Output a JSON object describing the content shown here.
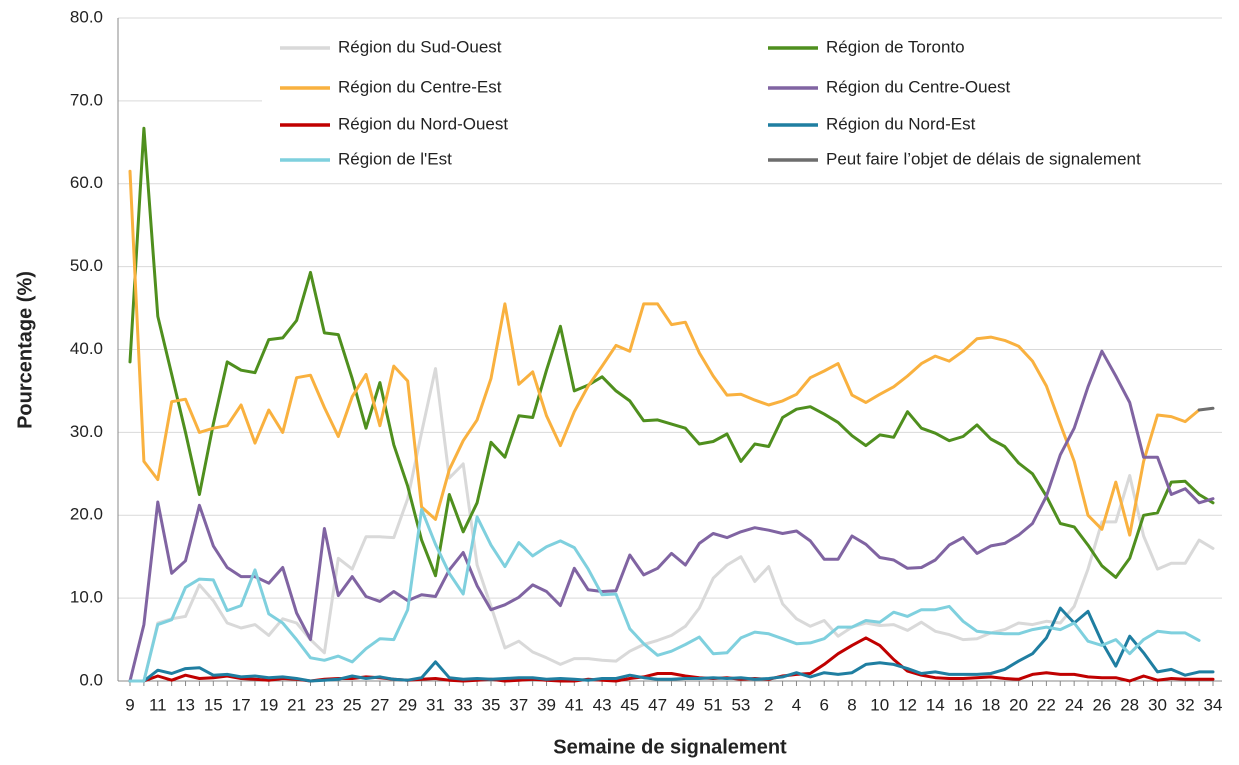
{
  "chart_data": {
    "type": "line",
    "x_label": "Semaine de signalement",
    "y_label": "Pourcentage (%)",
    "categories": [
      "9",
      null,
      "11",
      null,
      "13",
      null,
      "15",
      null,
      "17",
      null,
      "19",
      null,
      "21",
      null,
      "23",
      null,
      "25",
      null,
      "27",
      null,
      "29",
      null,
      "31",
      null,
      "33",
      null,
      "35",
      null,
      "37",
      null,
      "39",
      null,
      "41",
      null,
      "43",
      null,
      "45",
      null,
      "47",
      null,
      "49",
      null,
      "51",
      null,
      "53",
      null,
      "2",
      null,
      "4",
      null,
      "6",
      null,
      "8",
      null,
      "10",
      null,
      "12",
      null,
      "14",
      null,
      "16",
      null,
      "18",
      null,
      "20",
      null,
      "22",
      null,
      "24",
      null,
      "26",
      null,
      "28",
      null,
      "30",
      null,
      "32",
      null,
      "34"
    ],
    "ylim": [
      0,
      80
    ],
    "yticks": [
      {
        "value": 0,
        "label": "0.0"
      },
      {
        "value": 10,
        "label": "10.0"
      },
      {
        "value": 20,
        "label": "20.0"
      },
      {
        "value": 30,
        "label": "30.0"
      },
      {
        "value": 40,
        "label": "40.0"
      },
      {
        "value": 50,
        "label": "50.0"
      },
      {
        "value": 60,
        "label": "60.0"
      },
      {
        "value": 70,
        "label": "70.0"
      },
      {
        "value": 80,
        "label": "80.0"
      }
    ],
    "grid": true,
    "series": [
      {
        "name": "Région du Sud-Ouest",
        "color": "#d9d9d9",
        "values": [
          0,
          0,
          7,
          7.5,
          7.8,
          11.6,
          9.7,
          7,
          6.4,
          6.8,
          5.5,
          7.5,
          7,
          5,
          3.4,
          14.8,
          13.5,
          17.4,
          17.4,
          17.3,
          22,
          30,
          37.7,
          24.5,
          26.2,
          14,
          9,
          4,
          4.8,
          3.5,
          2.8,
          2,
          2.7,
          2.7,
          2.5,
          2.4,
          3.6,
          4.4,
          4.9,
          5.5,
          6.6,
          8.8,
          12.4,
          14,
          15,
          12,
          13.8,
          9.3,
          7.5,
          6.6,
          7.3,
          5.4,
          6.5,
          7,
          6.7,
          6.8,
          6.1,
          7.1,
          6,
          5.6,
          5,
          5.1,
          5.8,
          6.2,
          7,
          6.8,
          7.2,
          7,
          9,
          13.5,
          19.2,
          19.2,
          24.8,
          17.5,
          13.5,
          14.2,
          14.2,
          17,
          16
        ]
      },
      {
        "name": "Région de Toronto",
        "color": "#4f8f1e",
        "values": [
          38.5,
          66.7,
          44,
          37,
          30,
          22.5,
          31,
          38.5,
          37.5,
          37.2,
          41.2,
          41.4,
          43.5,
          49.3,
          42,
          41.8,
          36.5,
          30.5,
          36,
          28.5,
          23.5,
          17,
          12.7,
          22.5,
          18,
          21.5,
          28.8,
          27,
          32,
          31.8,
          37.5,
          42.8,
          35,
          35.7,
          36.7,
          35,
          33.8,
          31.4,
          31.5,
          31,
          30.5,
          28.6,
          28.9,
          29.8,
          26.5,
          28.6,
          28.3,
          31.8,
          32.8,
          33.1,
          32.2,
          31.2,
          29.6,
          28.4,
          29.7,
          29.4,
          32.5,
          30.5,
          29.9,
          29,
          29.5,
          30.9,
          29.2,
          28.3,
          26.3,
          25,
          22.3,
          19,
          18.6,
          16.4,
          13.9,
          12.5,
          14.8,
          20,
          20.3,
          24,
          24.1,
          22.5,
          21.5
        ]
      },
      {
        "name": "Région du Centre-Est",
        "color": "#f9b13f",
        "values": [
          61.5,
          26.5,
          24.3,
          33.7,
          34,
          30,
          30.5,
          30.8,
          33.3,
          28.7,
          32.7,
          30,
          36.6,
          36.9,
          33,
          29.5,
          34.3,
          37,
          30.8,
          38,
          36.2,
          21,
          19.5,
          25.5,
          29,
          31.5,
          36.5,
          45.5,
          35.8,
          37.3,
          32,
          28.4,
          32.5,
          35.6,
          38,
          40.5,
          39.8,
          45.5,
          45.5,
          43,
          43.3,
          39.6,
          36.8,
          34.5,
          34.6,
          33.9,
          33.3,
          33.8,
          34.6,
          36.6,
          37.4,
          38.3,
          34.5,
          33.6,
          34.6,
          35.5,
          36.8,
          38.3,
          39.2,
          38.6,
          39.8,
          41.3,
          41.5,
          41.1,
          40.4,
          38.6,
          35.6,
          31,
          26.5,
          20,
          18.3,
          24,
          17.6,
          26.5,
          32.1,
          31.9,
          31.3,
          32.7,
          null
        ]
      },
      {
        "name": "Région du Centre-Ouest",
        "color": "#8064a2",
        "values": [
          0,
          6.8,
          21.6,
          13,
          14.5,
          21.2,
          16.3,
          13.7,
          12.6,
          12.6,
          11.8,
          13.7,
          8.2,
          5,
          18.4,
          10.3,
          12.6,
          10.2,
          9.6,
          10.8,
          9.7,
          10.4,
          10.2,
          13.4,
          15.5,
          11.5,
          8.6,
          9.2,
          10.1,
          11.6,
          10.8,
          9.1,
          13.6,
          11,
          10.8,
          10.9,
          15.2,
          12.8,
          13.6,
          15.4,
          14,
          16.6,
          17.8,
          17.3,
          18,
          18.5,
          18.2,
          17.8,
          18.1,
          16.9,
          14.7,
          14.7,
          17.5,
          16.5,
          14.9,
          14.6,
          13.6,
          13.7,
          14.6,
          16.4,
          17.3,
          15.4,
          16.3,
          16.6,
          17.6,
          19,
          22.3,
          27.3,
          30.5,
          35.5,
          39.8,
          36.8,
          33.6,
          27,
          27,
          22.5,
          23.2,
          21.5,
          22
        ]
      },
      {
        "name": "Région du Nord-Ouest",
        "color": "#c00000",
        "values": [
          0,
          0,
          0.6,
          0.1,
          0.7,
          0.3,
          0.4,
          0.6,
          0.3,
          0.2,
          0.1,
          0.3,
          0.2,
          0,
          0.2,
          0.3,
          0.3,
          0.5,
          0.4,
          0.2,
          0.1,
          0.2,
          0.3,
          0.1,
          0,
          0.1,
          0.2,
          0,
          0.1,
          0.2,
          0.1,
          0,
          0,
          0.2,
          0.1,
          0,
          0.3,
          0.5,
          0.9,
          0.9,
          0.6,
          0.4,
          0.3,
          0.4,
          0.2,
          0.3,
          0.2,
          0.6,
          0.8,
          0.9,
          2,
          3.3,
          4.3,
          5.2,
          4.3,
          2.6,
          1.2,
          0.7,
          0.4,
          0.3,
          0.3,
          0.4,
          0.5,
          0.3,
          0.2,
          0.8,
          1,
          0.8,
          0.8,
          0.5,
          0.4,
          0.4,
          0,
          0.6,
          0.1,
          0.3,
          0.2,
          0.2,
          0.2
        ]
      },
      {
        "name": "Région du Nord-Est",
        "color": "#1f7ea1",
        "values": [
          0,
          0,
          1.3,
          0.9,
          1.5,
          1.6,
          0.7,
          0.8,
          0.5,
          0.6,
          0.4,
          0.5,
          0.3,
          0,
          0.1,
          0.2,
          0.6,
          0.3,
          0.5,
          0.2,
          0.1,
          0.4,
          2.3,
          0.4,
          0.2,
          0.3,
          0.2,
          0.3,
          0.4,
          0.4,
          0.2,
          0.3,
          0.2,
          0.1,
          0.3,
          0.3,
          0.7,
          0.4,
          0.2,
          0.2,
          0.3,
          0.3,
          0.4,
          0.3,
          0.4,
          0.2,
          0.3,
          0.5,
          1,
          0.5,
          1,
          0.8,
          1,
          2,
          2.2,
          2,
          1.5,
          0.9,
          1.1,
          0.8,
          0.8,
          0.8,
          0.9,
          1.4,
          2.4,
          3.3,
          5.2,
          8.8,
          7,
          8.4,
          4.7,
          1.8,
          5.4,
          3.4,
          1.1,
          1.4,
          0.7,
          1.1,
          1.1
        ]
      },
      {
        "name": "Région de l'Est",
        "color": "#7fd0de",
        "values": [
          0,
          0,
          6.8,
          7.4,
          11.3,
          12.3,
          12.2,
          8.5,
          9.1,
          13.4,
          8.1,
          7,
          5,
          2.8,
          2.5,
          3,
          2.3,
          3.9,
          5.1,
          5,
          8.6,
          20.7,
          16.5,
          13,
          10.5,
          19.8,
          16.4,
          13.8,
          16.7,
          15.1,
          16.2,
          16.9,
          16.1,
          13.5,
          10.4,
          10.5,
          6.3,
          4.5,
          3.1,
          3.6,
          4.4,
          5.3,
          3.3,
          3.4,
          5.2,
          5.9,
          5.7,
          5.1,
          4.5,
          4.6,
          5.1,
          6.5,
          6.5,
          7.3,
          7.1,
          8.3,
          7.8,
          8.6,
          8.6,
          9,
          7.2,
          6,
          5.8,
          5.7,
          5.7,
          6.2,
          6.5,
          6.2,
          7,
          4.8,
          4.3,
          5,
          3.3,
          5,
          6,
          5.8,
          5.8,
          4.9,
          null
        ]
      },
      {
        "name": "Peut faire l’objet de délais de signalement",
        "color": "#6d6d6d",
        "values": [
          null,
          null,
          null,
          null,
          null,
          null,
          null,
          null,
          null,
          null,
          null,
          null,
          null,
          null,
          null,
          null,
          null,
          null,
          null,
          null,
          null,
          null,
          null,
          null,
          null,
          null,
          null,
          null,
          null,
          null,
          null,
          null,
          null,
          null,
          null,
          null,
          null,
          null,
          null,
          null,
          null,
          null,
          null,
          null,
          null,
          null,
          null,
          null,
          null,
          null,
          null,
          null,
          null,
          null,
          null,
          null,
          null,
          null,
          null,
          null,
          null,
          null,
          null,
          null,
          null,
          null,
          null,
          null,
          null,
          null,
          null,
          null,
          null,
          null,
          null,
          null,
          null,
          32.7,
          32.9
        ]
      }
    ]
  }
}
